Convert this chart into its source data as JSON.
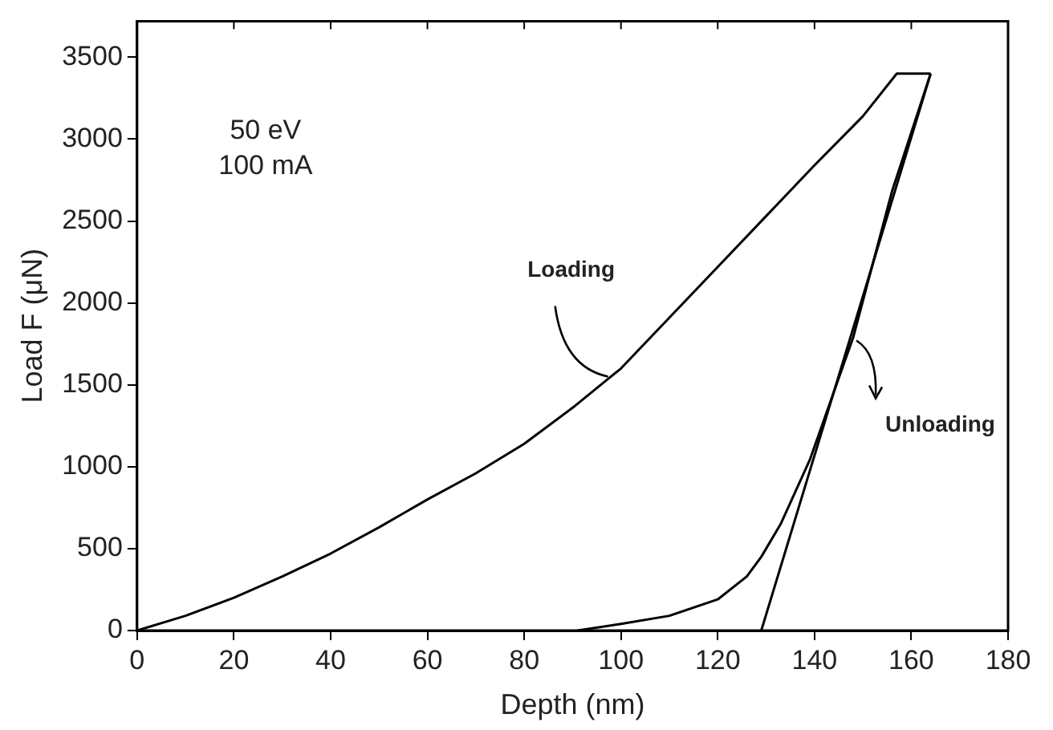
{
  "chart_data": {
    "type": "line",
    "xlabel": "Depth (nm)",
    "ylabel": "Load F (μN)",
    "xlim": [
      0,
      180
    ],
    "ylim": [
      0,
      3720
    ],
    "xticks": [
      0,
      20,
      40,
      60,
      80,
      100,
      120,
      140,
      160,
      180
    ],
    "yticks": [
      0,
      500,
      1000,
      1500,
      2000,
      2500,
      3000,
      3500
    ],
    "grid": false,
    "legend": false,
    "marker": "none",
    "line_style": "solid",
    "series": [
      {
        "color": "#000000",
        "x": [
          0,
          10,
          20,
          30,
          40,
          50,
          60,
          70,
          80,
          90,
          100,
          110,
          120,
          130,
          140,
          150,
          157,
          164
        ],
        "values": [
          0,
          90,
          200,
          330,
          470,
          630,
          800,
          960,
          1140,
          1360,
          1600,
          1910,
          2220,
          2530,
          2840,
          3140,
          3400,
          3400
        ]
      },
      {
        "color": "#000000",
        "x": [
          164,
          156,
          148,
          139,
          133,
          129,
          126,
          120,
          110,
          100,
          91
        ],
        "values": [
          3400,
          2680,
          1790,
          1040,
          650,
          450,
          330,
          190,
          90,
          40,
          0
        ]
      },
      {
        "color": "#000000",
        "x": [
          164,
          129
        ],
        "values": [
          3400,
          0
        ]
      }
    ],
    "annotations": [
      "50 eV",
      "100 mA",
      {
        "text": "Loading",
        "x": 98,
        "y": 1560
      },
      {
        "text": "Unloading",
        "x": 148,
        "y": 1790
      }
    ]
  }
}
